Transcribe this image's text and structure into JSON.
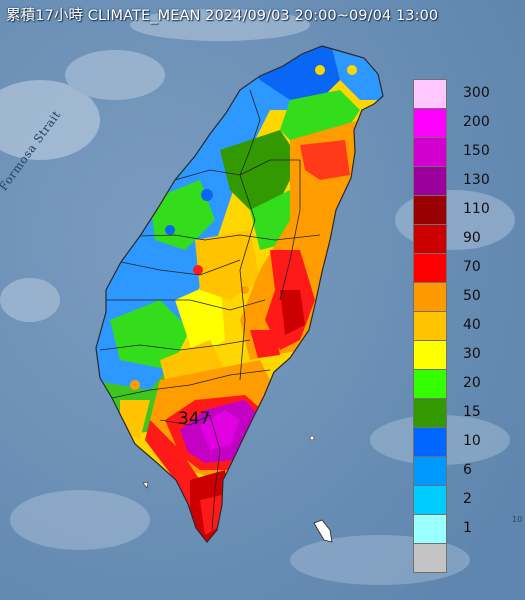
{
  "map": {
    "title": "累積17小時 CLIMATE_MEAN 2024/09/03 20:00~09/04 13:00",
    "strait_label": "Formosa Strait",
    "max_value_label": "347",
    "corner_text": "10",
    "colors": {
      "sea": "#6f93b8",
      "title_text": "#ffffff",
      "coast_outline": "#2a2a2a"
    }
  },
  "legend": {
    "unit": "",
    "items": [
      {
        "label": "300",
        "color": "#ffc6ff"
      },
      {
        "label": "200",
        "color": "#ff00ff"
      },
      {
        "label": "150",
        "color": "#d100d1"
      },
      {
        "label": "130",
        "color": "#9c009c"
      },
      {
        "label": "110",
        "color": "#990000"
      },
      {
        "label": "90",
        "color": "#cc0000"
      },
      {
        "label": "70",
        "color": "#ff0000"
      },
      {
        "label": "50",
        "color": "#ff9900"
      },
      {
        "label": "40",
        "color": "#ffc300"
      },
      {
        "label": "30",
        "color": "#ffff00"
      },
      {
        "label": "20",
        "color": "#33ff00"
      },
      {
        "label": "15",
        "color": "#339900"
      },
      {
        "label": "10",
        "color": "#0066ff"
      },
      {
        "label": "6",
        "color": "#0099ff"
      },
      {
        "label": "2",
        "color": "#00ccff"
      },
      {
        "label": "1",
        "color": "#99ffff"
      },
      {
        "label": "",
        "color": "#c4c4c4"
      }
    ]
  }
}
